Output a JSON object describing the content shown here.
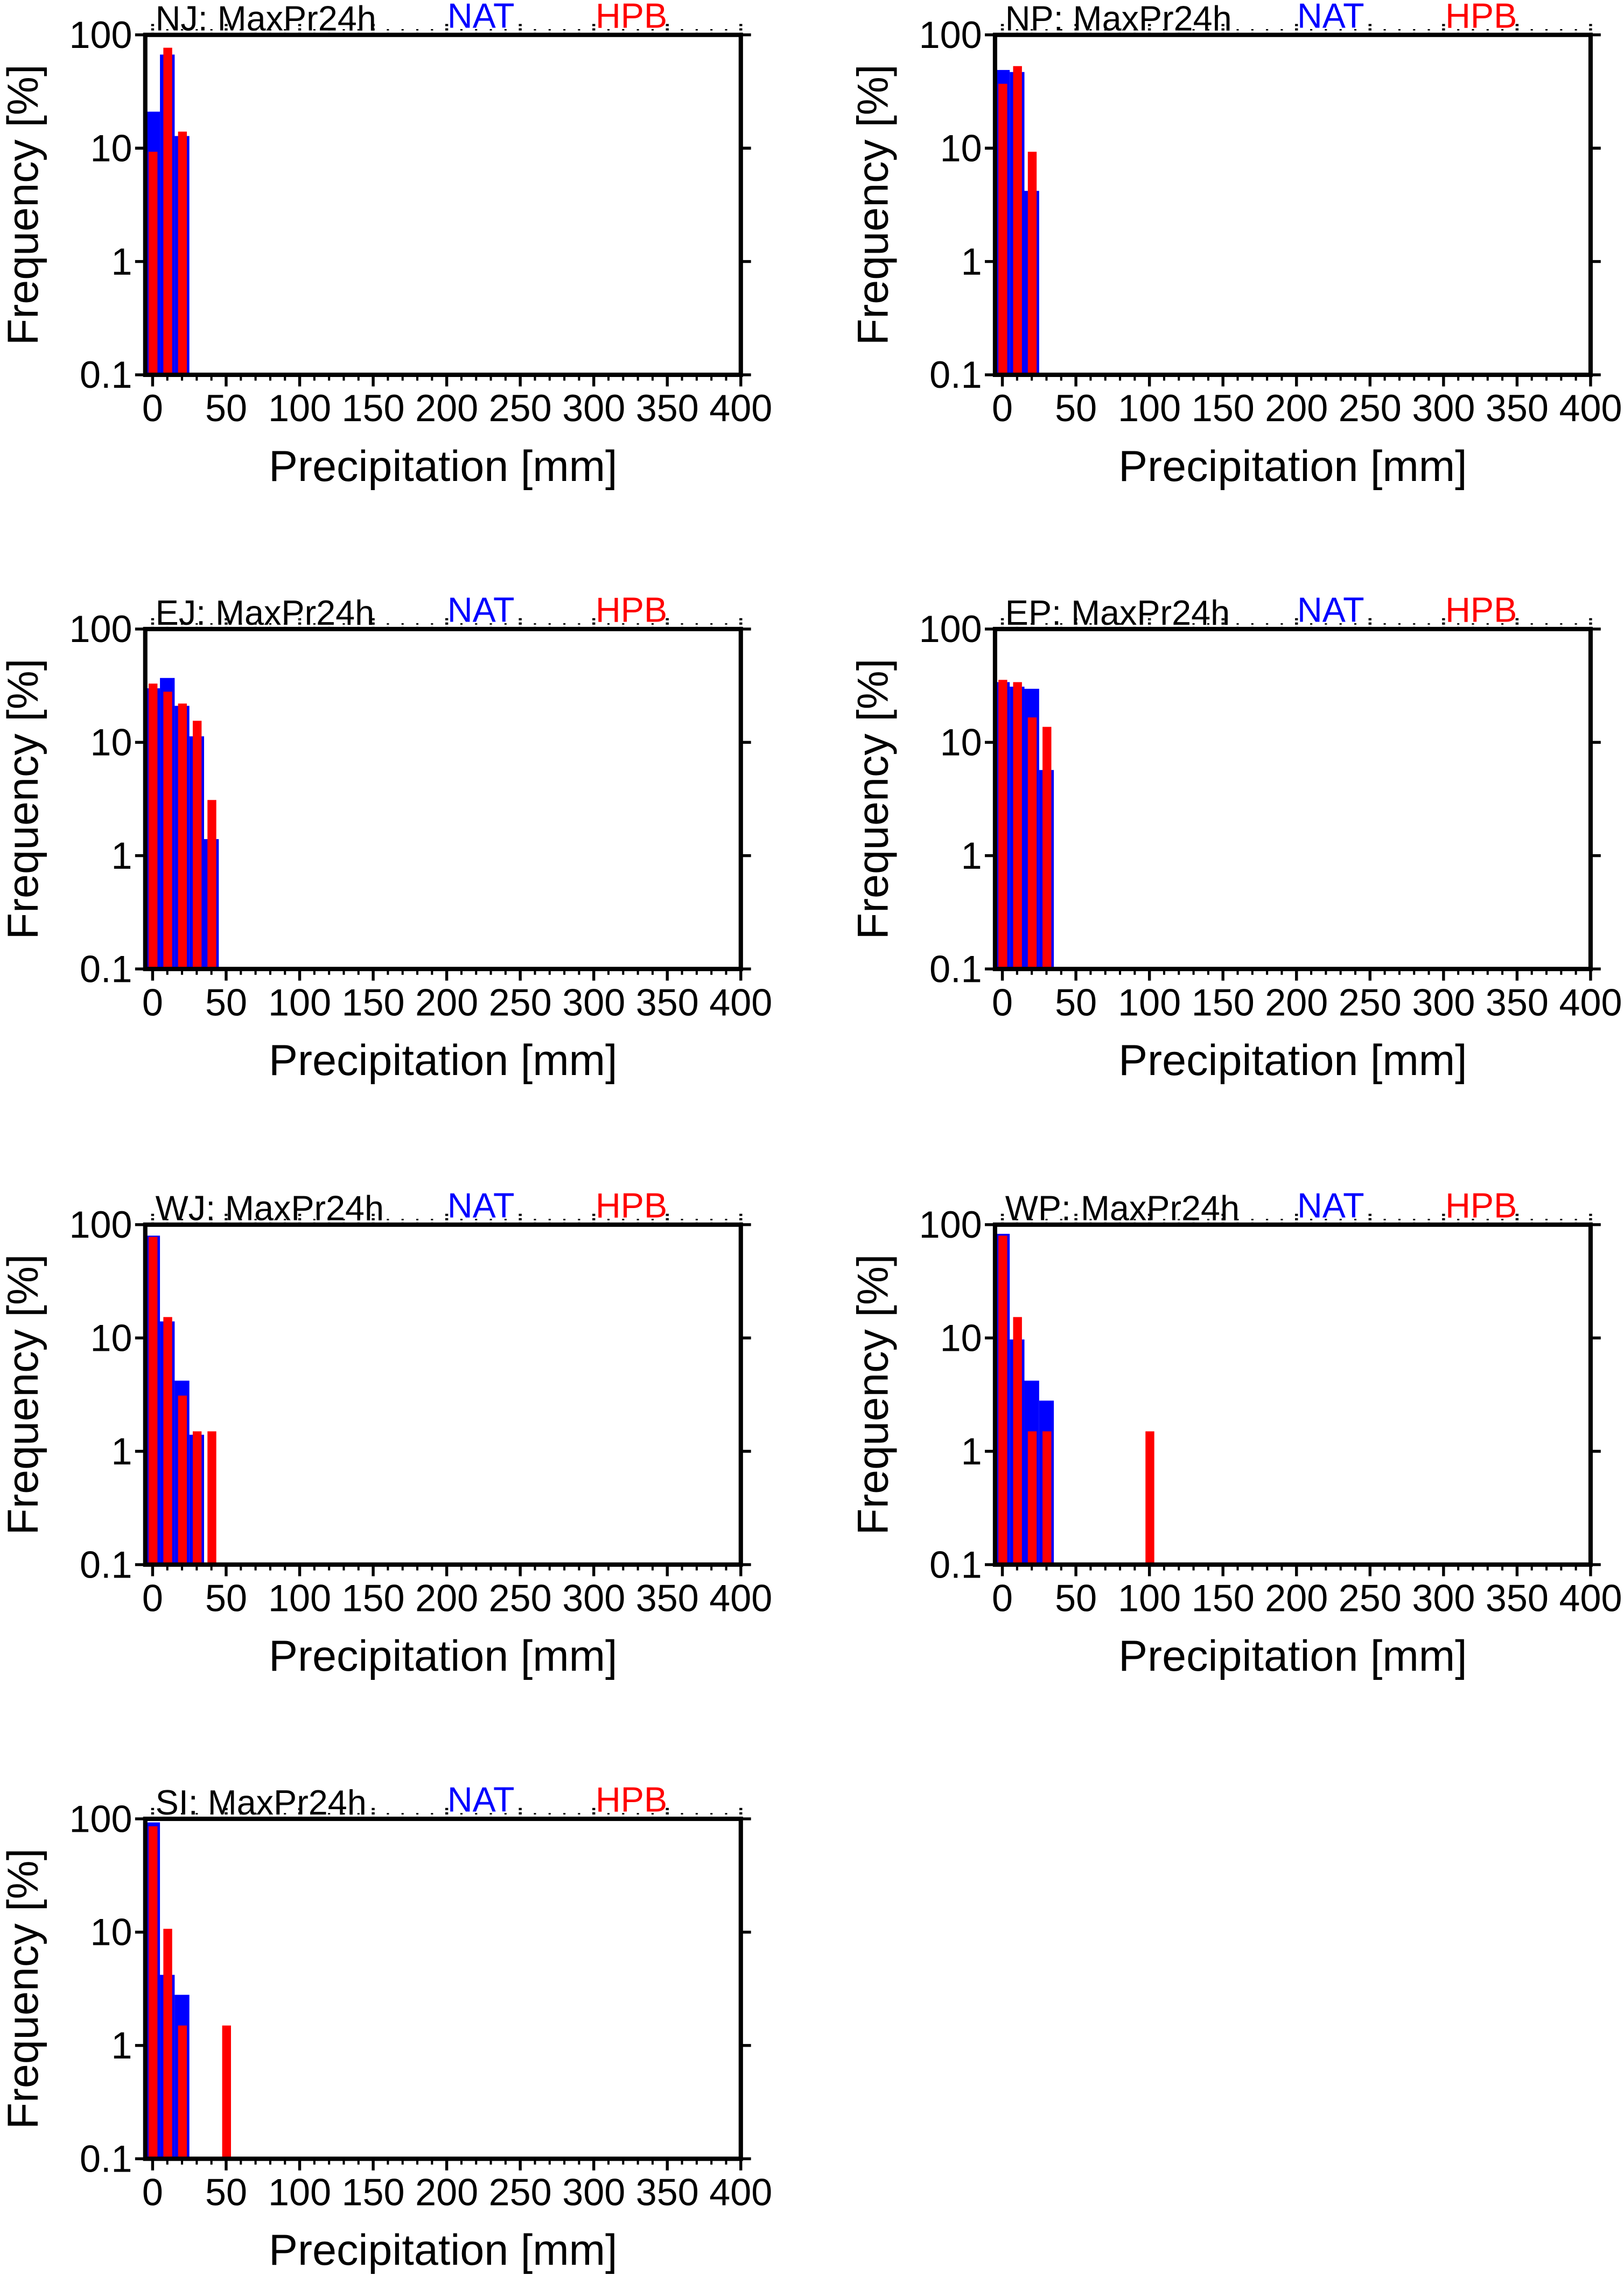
{
  "colors": {
    "nat": "#0000ff",
    "hpb": "#ff0000",
    "axis": "#000000"
  },
  "legend": {
    "nat": "NAT",
    "hpb": "HPB"
  },
  "axes": {
    "xlabel": "Precipitation [mm]",
    "ylabel": "Frequency [%]",
    "xlim": [
      -5,
      400
    ],
    "ylim": [
      0.1,
      100
    ],
    "yscale": "log",
    "xticks": [
      0,
      50,
      100,
      150,
      200,
      250,
      300,
      350,
      400
    ],
    "xtick_labels": [
      "0",
      "50",
      "100",
      "150",
      "200",
      "250",
      "300",
      "350",
      "400"
    ],
    "yticks": [
      100,
      10,
      1,
      0.1
    ],
    "ytick_labels": [
      "100",
      "10",
      "1",
      "0.1"
    ]
  },
  "chart_data": [
    {
      "type": "bar",
      "title": "NJ: MaxPr24h",
      "xlabel": "Precipitation [mm]",
      "ylabel": "Frequency [%]",
      "xlim": [
        -5,
        400
      ],
      "ylim": [
        0.1,
        100
      ],
      "series": [
        {
          "name": "NAT",
          "x": [
            0,
            10,
            20
          ],
          "values": [
            21,
            67,
            12.8
          ]
        },
        {
          "name": "HPB",
          "x": [
            0,
            10,
            20
          ],
          "values": [
            9.3,
            77,
            14
          ]
        }
      ]
    },
    {
      "type": "bar",
      "title": "NP: MaxPr24h",
      "xlabel": "Precipitation [mm]",
      "ylabel": "Frequency [%]",
      "xlim": [
        -5,
        400
      ],
      "ylim": [
        0.1,
        100
      ],
      "series": [
        {
          "name": "NAT",
          "x": [
            0,
            10,
            20
          ],
          "values": [
            49,
            47,
            4.2
          ]
        },
        {
          "name": "HPB",
          "x": [
            0,
            10,
            20
          ],
          "values": [
            37,
            53,
            9.3
          ]
        }
      ]
    },
    {
      "type": "bar",
      "title": "EJ: MaxPr24h",
      "xlabel": "Precipitation [mm]",
      "ylabel": "Frequency [%]",
      "xlim": [
        -5,
        400
      ],
      "ylim": [
        0.1,
        100
      ],
      "series": [
        {
          "name": "NAT",
          "x": [
            0,
            10,
            20,
            30,
            40
          ],
          "values": [
            30,
            37,
            21,
            11.3,
            1.4
          ]
        },
        {
          "name": "HPB",
          "x": [
            0,
            10,
            20,
            30,
            40
          ],
          "values": [
            33,
            28,
            22,
            15.5,
            3.1
          ]
        }
      ]
    },
    {
      "type": "bar",
      "title": "EP: MaxPr24h",
      "xlabel": "Precipitation [mm]",
      "ylabel": "Frequency [%]",
      "xlim": [
        -5,
        400
      ],
      "ylim": [
        0.1,
        100
      ],
      "series": [
        {
          "name": "NAT",
          "x": [
            0,
            10,
            20,
            30
          ],
          "values": [
            34,
            31,
            29.7,
            5.7
          ]
        },
        {
          "name": "HPB",
          "x": [
            0,
            10,
            20,
            30
          ],
          "values": [
            35.6,
            34,
            16.6,
            13.7
          ]
        }
      ]
    },
    {
      "type": "bar",
      "title": "WJ: MaxPr24h",
      "xlabel": "Precipitation [mm]",
      "ylabel": "Frequency [%]",
      "xlim": [
        -5,
        400
      ],
      "ylim": [
        0.1,
        100
      ],
      "series": [
        {
          "name": "NAT",
          "x": [
            0,
            10,
            20,
            30
          ],
          "values": [
            80,
            14,
            4.2,
            1.4
          ]
        },
        {
          "name": "HPB",
          "x": [
            0,
            10,
            20,
            30,
            40
          ],
          "values": [
            78,
            15.3,
            3.1,
            1.5,
            1.5
          ]
        }
      ]
    },
    {
      "type": "bar",
      "title": "WP: MaxPr24h",
      "xlabel": "Precipitation [mm]",
      "ylabel": "Frequency [%]",
      "xlim": [
        -5,
        400
      ],
      "ylim": [
        0.1,
        100
      ],
      "series": [
        {
          "name": "NAT",
          "x": [
            0,
            10,
            20,
            30
          ],
          "values": [
            83,
            9.7,
            4.2,
            2.8
          ]
        },
        {
          "name": "HPB",
          "x": [
            0,
            10,
            20,
            30,
            100
          ],
          "values": [
            80,
            15.3,
            1.5,
            1.5,
            1.5
          ]
        }
      ]
    },
    {
      "type": "bar",
      "title": "SI: MaxPr24h",
      "xlabel": "Precipitation [mm]",
      "ylabel": "Frequency [%]",
      "xlim": [
        -5,
        400
      ],
      "ylim": [
        0.1,
        100
      ],
      "series": [
        {
          "name": "NAT",
          "x": [
            0,
            10,
            20
          ],
          "values": [
            93,
            4.2,
            2.8
          ]
        },
        {
          "name": "HPB",
          "x": [
            0,
            10,
            20,
            50
          ],
          "values": [
            86,
            10.7,
            1.5,
            1.5
          ]
        }
      ]
    }
  ]
}
